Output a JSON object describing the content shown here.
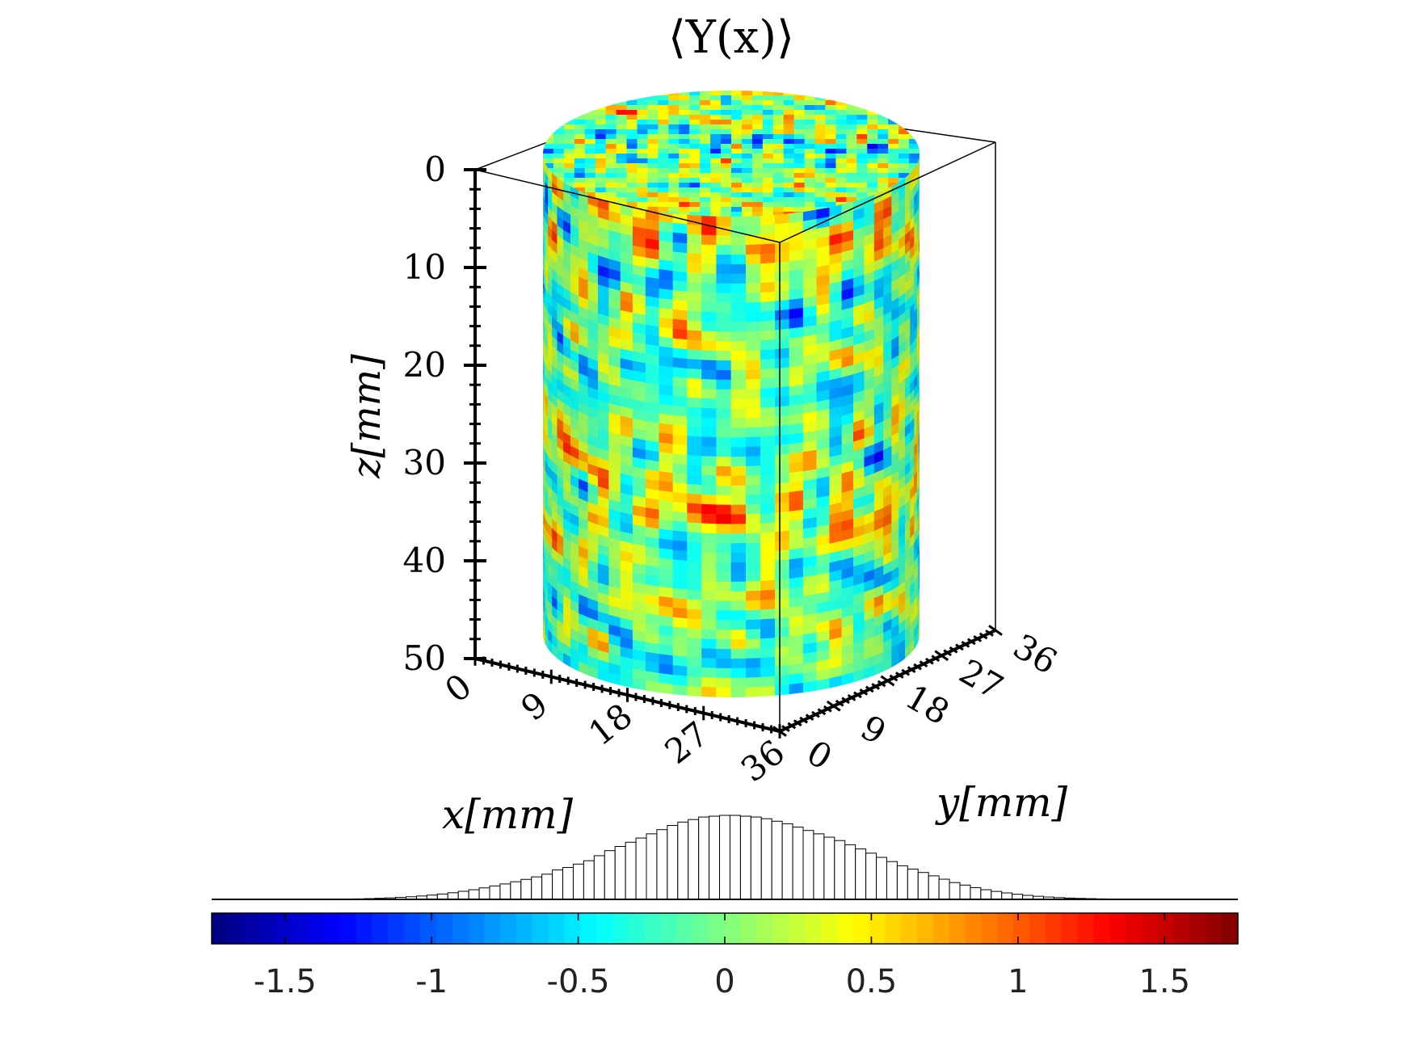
{
  "chart_data": {
    "type": "heatmap",
    "title": "⟨Y(x)⟩",
    "xlabel": "x[mm]",
    "ylabel": "y[mm]",
    "zlabel": "z[mm]",
    "x_ticks": [
      "0",
      "9",
      "18",
      "27",
      "36"
    ],
    "y_ticks": [
      "0",
      "9",
      "18",
      "27",
      "36"
    ],
    "z_ticks": [
      "0",
      "10",
      "20",
      "30",
      "40",
      "50"
    ],
    "xlim": [
      0,
      36
    ],
    "ylim": [
      0,
      36
    ],
    "zlim": [
      0,
      50
    ],
    "z_direction": "reversed",
    "colormap": "jet",
    "colorbar": {
      "range": [
        -1.75,
        1.75
      ],
      "ticks": [
        "-1.5",
        "-1",
        "-0.5",
        "0",
        "0.5",
        "1",
        "1.5"
      ],
      "tick_values": [
        -1.5,
        -1,
        -0.5,
        0,
        0.5,
        1,
        1.5
      ],
      "placement": "bottom"
    },
    "histogram": {
      "bin_range": [
        -1.75,
        1.75
      ],
      "note_position": "above-colorbar",
      "relative_counts": [
        0.002,
        0.004,
        0.006,
        0.009,
        0.013,
        0.018,
        0.024,
        0.031,
        0.04,
        0.051,
        0.064,
        0.079,
        0.096,
        0.115,
        0.137,
        0.16,
        0.184,
        0.21,
        0.238,
        0.268,
        0.3,
        0.35,
        0.38,
        0.42,
        0.46,
        0.52,
        0.58,
        0.63,
        0.68,
        0.73,
        0.78,
        0.83,
        0.88,
        0.92,
        0.95,
        0.98,
        0.99,
        1.0,
        1.0,
        0.99,
        0.98,
        0.96,
        0.93,
        0.9,
        0.86,
        0.82,
        0.78,
        0.74,
        0.7,
        0.65,
        0.6,
        0.55,
        0.5,
        0.45,
        0.4,
        0.36,
        0.32,
        0.28,
        0.24,
        0.2,
        0.17,
        0.14,
        0.115,
        0.095,
        0.077,
        0.061,
        0.048,
        0.037,
        0.028,
        0.021,
        0.016,
        0.012,
        0.009,
        0.006,
        0.004
      ]
    }
  }
}
